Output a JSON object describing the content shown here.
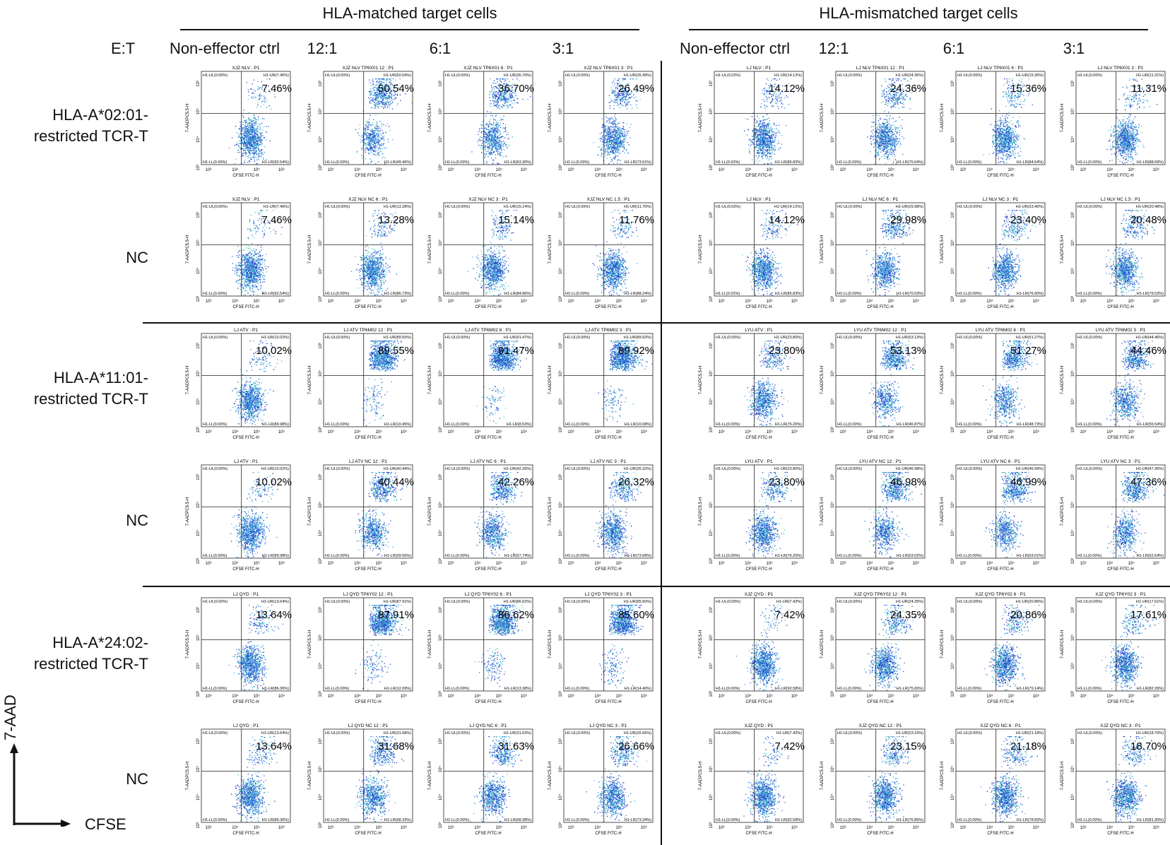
{
  "groups": [
    {
      "title": "HLA-matched target cells"
    },
    {
      "title": "HLA-mismatched target cells"
    }
  ],
  "et_label": "E:T",
  "columns": [
    "Non-effector ctrl",
    "12:1",
    "6:1",
    "3:1"
  ],
  "rows": [
    {
      "label_lines": [
        "HLA-A*02:01-",
        "restricted TCR-T"
      ]
    },
    {
      "label_lines": [
        "NC"
      ]
    },
    {
      "label_lines": [
        "HLA-A*11:01-",
        "restricted TCR-T"
      ]
    },
    {
      "label_lines": [
        "NC"
      ]
    },
    {
      "label_lines": [
        "HLA-A*24:02-",
        "restricted TCR-T"
      ]
    },
    {
      "label_lines": [
        "NC"
      ]
    }
  ],
  "axis_key": {
    "y": "7-AAD",
    "x": "CFSE"
  },
  "plot_axes": {
    "y": "7-AADPC5.5-H",
    "x": "CFSE FITC-H",
    "ticks": [
      "10³",
      "10⁴",
      "10⁵",
      "10⁶"
    ]
  },
  "chart_data": {
    "type": "scatter",
    "description_units": "percent of cells in upper-right quadrant (H1-UR)",
    "panels": [
      [
        {
          "title": "XJZ NLV : P1",
          "ul": "H1-UL(0.00%)",
          "ur": "H1-UR(7.46%)",
          "ll": "H1-LL(0.00%)",
          "lr": "H1-LR(92.54%)",
          "big": "7.46%",
          "ur_value": 7.46
        },
        {
          "title": "XJZ NLV TP6X01 12 : P1",
          "ul": "H1-UL(0.00%)",
          "ur": "H1-UR(50.54%)",
          "ll": "H1-LL(0.00%)",
          "lr": "H1-LR(49.46%)",
          "big": "50.54%",
          "ur_value": 50.54
        },
        {
          "title": "XJZ NLV TP6X01 6 : P1",
          "ul": "H1-UL(0.00%)",
          "ur": "H1-UR(36.70%)",
          "ll": "H1-LL(0.00%)",
          "lr": "H1-LR(63.30%)",
          "big": "36.70%",
          "ur_value": 36.7
        },
        {
          "title": "XJZ NLV TP6X01 3 : P1",
          "ul": "H1-UL(0.00%)",
          "ur": "H1-UR(26.49%)",
          "ll": "H1-LL(0.00%)",
          "lr": "H1-LR(73.51%)",
          "big": "26.49%",
          "ur_value": 26.49
        },
        {
          "title": "LJ NLV : P1",
          "ul": "H1-UL(0.02%)",
          "ur": "H1-UR(14.12%)",
          "ll": "H1-LL(0.02%)",
          "lr": "H1-LR(85.83%)",
          "big": "14.12%",
          "ur_value": 14.12
        },
        {
          "title": "LJ NLV TP6X01 12 : P1",
          "ul": "H1-UL(0.00%)",
          "ur": "H1-UR(24.36%)",
          "ll": "H1-LL(0.00%)",
          "lr": "H1-LR(75.64%)",
          "big": "24.36%",
          "ur_value": 24.36
        },
        {
          "title": "LJ NLV TP6X01 6 : P1",
          "ul": "H1-UL(0.00%)",
          "ur": "H1-UR(15.36%)",
          "ll": "H1-LL(0.00%)",
          "lr": "H1-LR(84.64%)",
          "big": "15.36%",
          "ur_value": 15.36
        },
        {
          "title": "LJ NLV TP6X01 3 : P1",
          "ul": "H1-UL(0.00%)",
          "ur": "H1-UR(11.31%)",
          "ll": "H1-LL(0.00%)",
          "lr": "H1-LR(88.69%)",
          "big": "11.31%",
          "ur_value": 11.31
        }
      ],
      [
        {
          "title": "XJZ NLV : P1",
          "ul": "H1-UL(0.00%)",
          "ur": "H1-UR(7.46%)",
          "ll": "H1-LL(0.00%)",
          "lr": "H1-LR(92.54%)",
          "big": "7.46%",
          "ur_value": 7.46
        },
        {
          "title": "XJZ NLV NC 6 : P1",
          "ul": "H1-UL(0.00%)",
          "ur": "H1-UR(13.28%)",
          "ll": "H1-LL(0.00%)",
          "lr": "H1-LR(86.73%)",
          "big": "13.28%",
          "ur_value": 13.28
        },
        {
          "title": "XJZ NLV NC 3 : P1",
          "ul": "H1-UL(0.00%)",
          "ur": "H1-UR(15.14%)",
          "ll": "H1-LL(0.00%)",
          "lr": "H1-LR(84.86%)",
          "big": "15.14%",
          "ur_value": 15.14
        },
        {
          "title": "XJZ NLV NC 1.5 : P1",
          "ul": "H1-UL(0.00%)",
          "ur": "H1-UR(11.76%)",
          "ll": "H1-LL(0.00%)",
          "lr": "H1-LR(88.24%)",
          "big": "11.76%",
          "ur_value": 11.76
        },
        {
          "title": "LJ NLV : P1",
          "ul": "H1-UL(0.02%)",
          "ur": "H1-UR(14.12%)",
          "ll": "H1-LL(0.02%)",
          "lr": "H1-LR(85.83%)",
          "big": "14.12%",
          "ur_value": 14.12
        },
        {
          "title": "LJ NLV NC 6 : P1",
          "ul": "H1-UL(0.00%)",
          "ur": "H1-UR(29.98%)",
          "ll": "H1-LL(0.00%)",
          "lr": "H1-LR(70.03%)",
          "big": "29.98%",
          "ur_value": 29.98
        },
        {
          "title": "LJ NLV NC 3 : P1",
          "ul": "H1-UL(0.00%)",
          "ur": "H1-UR(23.40%)",
          "ll": "H1-LL(0.00%)",
          "lr": "H1-LR(76.60%)",
          "big": "23.40%",
          "ur_value": 23.4
        },
        {
          "title": "LJ NLV NC 1.5 : P1",
          "ul": "H1-UL(0.00%)",
          "ur": "H1-UR(20.48%)",
          "ll": "H1-LL(0.00%)",
          "lr": "H1-LR(79.53%)",
          "big": "20.48%",
          "ur_value": 20.48
        }
      ],
      [
        {
          "title": "LJ ATV : P1",
          "ul": "H1-UL(0.00%)",
          "ur": "H1-UR(10.02%)",
          "ll": "H1-LL(0.00%)",
          "lr": "H1-LR(89.98%)",
          "big": "10.02%",
          "ur_value": 10.02
        },
        {
          "title": "LJ ATV TP6M02 12 : P1",
          "ul": "H1-UL(0.00%)",
          "ur": "H1-UR(89.55%)",
          "ll": "H1-LL(0.00%)",
          "lr": "H1-LR(10.45%)",
          "big": "89.55%",
          "ur_value": 89.55
        },
        {
          "title": "LJ ATV TP6M02 6 : P1",
          "ul": "H1-UL(0.00%)",
          "ur": "H1-UR(91.47%)",
          "ll": "H1-LL(0.00%)",
          "lr": "H1-LR(8.53%)",
          "big": "91.47%",
          "ur_value": 91.47
        },
        {
          "title": "LJ ATV TP6M02 3 : P1",
          "ul": "H1-UL(0.00%)",
          "ur": "H1-UR(89.92%)",
          "ll": "H1-LL(0.00%)",
          "lr": "H1-LR(10.08%)",
          "big": "89.92%",
          "ur_value": 89.92
        },
        {
          "title": "LYU ATV : P1",
          "ul": "H1-UL(0.00%)",
          "ur": "H1-UR(23.80%)",
          "ll": "H1-LL(0.00%)",
          "lr": "H1-LR(76.20%)",
          "big": "23.80%",
          "ur_value": 23.8
        },
        {
          "title": "LYU ATV TP6M02 12 : P1",
          "ul": "H1-UL(0.00%)",
          "ur": "H1-UR(53.13%)",
          "ll": "H1-LL(0.00%)",
          "lr": "H1-LR(46.87%)",
          "big": "53.13%",
          "ur_value": 53.13
        },
        {
          "title": "LYU ATV TP6M02 6 : P1",
          "ul": "H1-UL(0.00%)",
          "ur": "H1-UR(51.27%)",
          "ll": "H1-LL(0.00%)",
          "lr": "H1-LR(48.73%)",
          "big": "51.27%",
          "ur_value": 51.27
        },
        {
          "title": "LYU ATV TP6M02 3 : P1",
          "ul": "H1-UL(0.00%)",
          "ur": "H1-UR(44.46%)",
          "ll": "H1-LL(0.00%)",
          "lr": "H1-LR(55.54%)",
          "big": "44.46%",
          "ur_value": 44.46
        }
      ],
      [
        {
          "title": "LJ ATV : P1",
          "ul": "H1-UL(0.00%)",
          "ur": "H1-UR(10.02%)",
          "ll": "H1-LL(0.00%)",
          "lr": "H1-LR(89.98%)",
          "big": "10.02%",
          "ur_value": 10.02
        },
        {
          "title": "LJ ATV NC 12 : P1",
          "ul": "H1-UL(0.00%)",
          "ur": "H1-UR(40.44%)",
          "ll": "H1-LL(0.00%)",
          "lr": "H1-LR(59.56%)",
          "big": "40.44%",
          "ur_value": 40.44
        },
        {
          "title": "LJ ATV NC 6 : P1",
          "ul": "H1-UL(0.00%)",
          "ur": "H1-UR(42.26%)",
          "ll": "H1-LL(0.00%)",
          "lr": "H1-LR(57.74%)",
          "big": "42.26%",
          "ur_value": 42.26
        },
        {
          "title": "LJ ATV NC 3 : P1",
          "ul": "H1-UL(0.00%)",
          "ur": "H1-UR(26.32%)",
          "ll": "H1-LL(0.00%)",
          "lr": "H1-LR(73.68%)",
          "big": "26.32%",
          "ur_value": 26.32
        },
        {
          "title": "LYU ATV : P1",
          "ul": "H1-UL(0.00%)",
          "ur": "H1-UR(23.80%)",
          "ll": "H1-LL(0.00%)",
          "lr": "H1-LR(76.20%)",
          "big": "23.80%",
          "ur_value": 23.8
        },
        {
          "title": "LYU ATV NC 12 : P1",
          "ul": "H1-UL(0.00%)",
          "ur": "H1-UR(46.98%)",
          "ll": "H1-LL(0.00%)",
          "lr": "H1-LR(53.02%)",
          "big": "46.98%",
          "ur_value": 46.98
        },
        {
          "title": "LYU ATV NC 6 : P1",
          "ul": "H1-UL(0.00%)",
          "ur": "H1-UR(46.99%)",
          "ll": "H1-LL(0.00%)",
          "lr": "H1-LR(53.01%)",
          "big": "46.99%",
          "ur_value": 46.99
        },
        {
          "title": "LYU ATV NC 3 : P1",
          "ul": "H1-UL(0.00%)",
          "ur": "H1-UR(47.36%)",
          "ll": "H1-LL(0.00%)",
          "lr": "H1-LR(52.64%)",
          "big": "47.36%",
          "ur_value": 47.36
        }
      ],
      [
        {
          "title": "LJ QYD : P1",
          "ul": "H1-UL(0.00%)",
          "ur": "H1-UR(13.64%)",
          "ll": "H1-LL(0.00%)",
          "lr": "H1-LR(86.36%)",
          "big": "13.64%",
          "ur_value": 13.64
        },
        {
          "title": "LJ QYD TP6Y02 12 : P1",
          "ul": "H1-UL(0.00%)",
          "ur": "H1-UR(87.91%)",
          "ll": "H1-LL(0.00%)",
          "lr": "H1-LR(12.09%)",
          "big": "87.91%",
          "ur_value": 87.91
        },
        {
          "title": "LJ QYD TP6Y02 6 : P1",
          "ul": "H1-UL(0.00%)",
          "ur": "H1-UR(86.62%)",
          "ll": "H1-LL(0.00%)",
          "lr": "H1-LR(13.38%)",
          "big": "86.62%",
          "ur_value": 86.62
        },
        {
          "title": "LJ QYD TP6Y02 3 : P1",
          "ul": "H1-UL(0.00%)",
          "ur": "H1-UR(85.60%)",
          "ll": "H1-LL(0.00%)",
          "lr": "H1-LR(14.40%)",
          "big": "85.60%",
          "ur_value": 85.6
        },
        {
          "title": "XJZ QYD : P1",
          "ul": "H1-UL(0.00%)",
          "ur": "H1-UR(7.42%)",
          "ll": "H1-LL(0.00%)",
          "lr": "H1-LR(92.58%)",
          "big": "7.42%",
          "ur_value": 7.42
        },
        {
          "title": "XJZ QYD TP6Y02 12 : P1",
          "ul": "H1-UL(0.00%)",
          "ur": "H1-UR(24.35%)",
          "ll": "H1-LL(0.00%)",
          "lr": "H1-LR(75.65%)",
          "big": "24.35%",
          "ur_value": 24.35
        },
        {
          "title": "XJZ QYD TP6Y02 6 : P1",
          "ul": "H1-UL(0.00%)",
          "ur": "H1-UR(20.86%)",
          "ll": "H1-LL(0.00%)",
          "lr": "H1-LR(79.14%)",
          "big": "20.86%",
          "ur_value": 20.86
        },
        {
          "title": "XJZ QYD TP6Y02 3 : P1",
          "ul": "H1-UL(0.00%)",
          "ur": "H1-UR(17.61%)",
          "ll": "H1-LL(0.00%)",
          "lr": "H1-LR(82.39%)",
          "big": "17.61%",
          "ur_value": 17.61
        }
      ],
      [
        {
          "title": "LJ QYD : P1",
          "ul": "H1-UL(0.00%)",
          "ur": "H1-UR(13.64%)",
          "ll": "H1-LL(0.00%)",
          "lr": "H1-LR(86.36%)",
          "big": "13.64%",
          "ur_value": 13.64
        },
        {
          "title": "LJ QYD NC 12 : P1",
          "ul": "H1-UL(0.00%)",
          "ur": "H1-UR(31.68%)",
          "ll": "H1-LL(0.00%)",
          "lr": "H1-LR(68.33%)",
          "big": "31.68%",
          "ur_value": 31.68
        },
        {
          "title": "LJ QYD NC 6 : P1",
          "ul": "H1-UL(0.00%)",
          "ur": "H1-UR(31.63%)",
          "ll": "H1-LL(0.00%)",
          "lr": "H1-LR(68.38%)",
          "big": "31.63%",
          "ur_value": 31.63
        },
        {
          "title": "LJ QYD NC 3 : P1",
          "ul": "H1-UL(0.00%)",
          "ur": "H1-UR(26.66%)",
          "ll": "H1-LL(0.00%)",
          "lr": "H1-LR(73.34%)",
          "big": "26.66%",
          "ur_value": 26.66
        },
        {
          "title": "XJZ QYD : P1",
          "ul": "H1-UL(0.00%)",
          "ur": "H1-UR(7.42%)",
          "ll": "H1-LL(0.00%)",
          "lr": "H1-LR(92.58%)",
          "big": "7.42%",
          "ur_value": 7.42
        },
        {
          "title": "XJZ QYD NC 12 : P1",
          "ul": "H1-UL(0.00%)",
          "ur": "H1-UR(23.15%)",
          "ll": "H1-LL(0.00%)",
          "lr": "H1-LR(76.85%)",
          "big": "23.15%",
          "ur_value": 23.15
        },
        {
          "title": "XJZ QYD NC 6 : P1",
          "ul": "H1-UL(0.00%)",
          "ur": "H1-UR(21.18%)",
          "ll": "H1-LL(0.00%)",
          "lr": "H1-LR(78.83%)",
          "big": "21.18%",
          "ur_value": 21.18
        },
        {
          "title": "XJZ QYD NC 3 : P1",
          "ul": "H1-UL(0.00%)",
          "ur": "H1-UR(18.70%)",
          "ll": "H1-LL(0.00%)",
          "lr": "H1-LR(81.30%)",
          "big": "18.70%",
          "ur_value": 18.7
        }
      ]
    ]
  }
}
